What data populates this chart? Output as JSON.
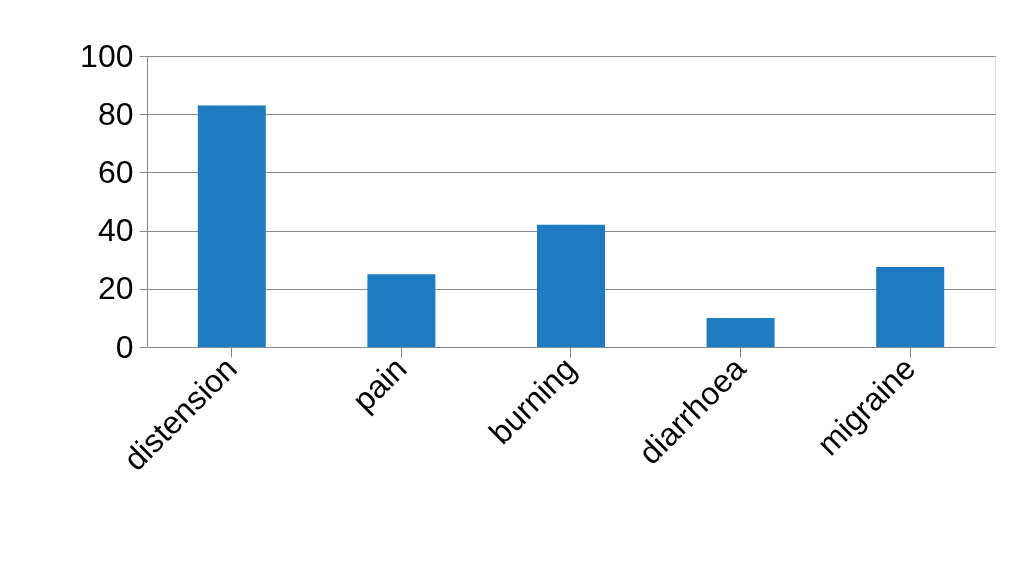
{
  "chart_data": {
    "type": "bar",
    "categories": [
      "distension",
      "pain",
      "burning",
      "diarrhoea",
      "migraine"
    ],
    "values": [
      83,
      25,
      42,
      10,
      27.5
    ],
    "color": "#1f7bc1",
    "ylim": [
      0,
      100
    ],
    "yticks": [
      0,
      20,
      40,
      60,
      80,
      100
    ],
    "grid": "y"
  }
}
